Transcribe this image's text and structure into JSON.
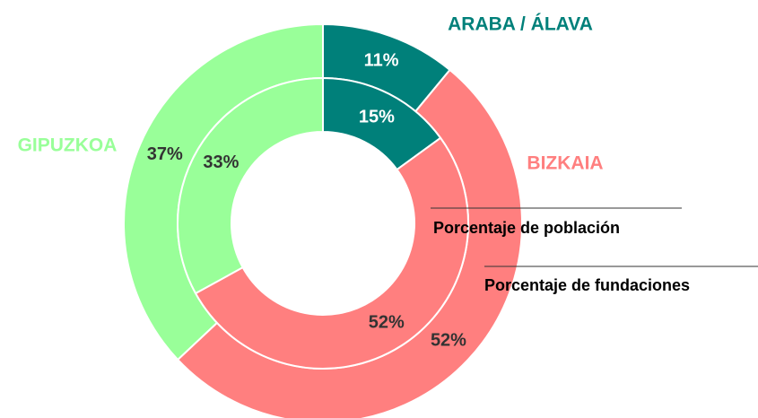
{
  "chart_data": {
    "type": "donut",
    "categories": [
      "ARABA / ÁLAVA",
      "BIZKAIA",
      "GIPUZKOA"
    ],
    "colors": [
      "#00807a",
      "#ff7f7f",
      "#99ff99"
    ],
    "series": [
      {
        "name": "Porcentaje de fundaciones",
        "values": [
          11,
          52,
          37
        ],
        "value_labels": [
          "11%",
          "52%",
          "37%"
        ]
      },
      {
        "name": "Porcentaje de población",
        "values": [
          15,
          52,
          33
        ],
        "value_labels": [
          "15%",
          "52%",
          "33%"
        ]
      }
    ]
  }
}
